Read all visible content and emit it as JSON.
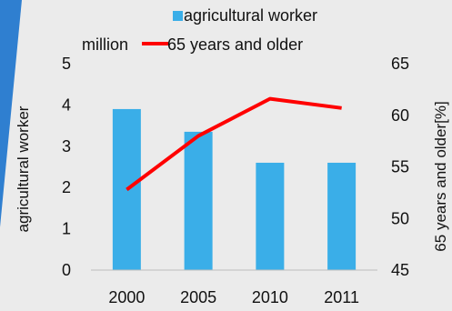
{
  "chart_data": {
    "type": "bar+line",
    "categories": [
      "2000",
      "2005",
      "2010",
      "2011"
    ],
    "bar_series": {
      "name": "agricultural worker",
      "axis": "left",
      "unit_label": "million",
      "values": [
        3.9,
        3.35,
        2.6,
        2.6
      ],
      "color": "#3aaee8"
    },
    "line_series": {
      "name": "65 years and older",
      "axis": "right",
      "values": [
        52.8,
        58.0,
        61.6,
        60.7
      ],
      "color": "#ff0000"
    },
    "left_axis": {
      "title": "agricultural worker",
      "ylim": [
        0,
        5
      ],
      "ticks": [
        "0",
        "1",
        "2",
        "3",
        "4",
        "5"
      ]
    },
    "right_axis": {
      "title": "65 years and older[%]",
      "ylim": [
        45,
        65
      ],
      "ticks": [
        "45",
        "50",
        "55",
        "60",
        "65"
      ]
    },
    "legend_position": "top",
    "grid": false
  },
  "background_color": "#ebebeb",
  "accent_color": "#2f7fd0"
}
